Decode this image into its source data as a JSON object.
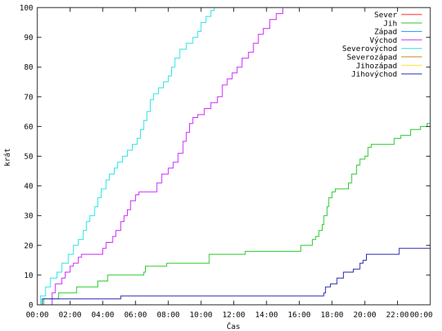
{
  "chart_data": {
    "type": "line",
    "xlabel": "Čas",
    "ylabel": "krát",
    "ylim": [
      0,
      100
    ],
    "xlim": [
      0,
      24
    ],
    "x_ticks": [
      {
        "value": 0,
        "label": "00:00"
      },
      {
        "value": 2,
        "label": "02:00"
      },
      {
        "value": 4,
        "label": "04:00"
      },
      {
        "value": 6,
        "label": "06:00"
      },
      {
        "value": 8,
        "label": "08:00"
      },
      {
        "value": 10,
        "label": "10:00"
      },
      {
        "value": 12,
        "label": "12:00"
      },
      {
        "value": 14,
        "label": "14:00"
      },
      {
        "value": 16,
        "label": "16:00"
      },
      {
        "value": 18,
        "label": "18:00"
      },
      {
        "value": 20,
        "label": "20:00"
      },
      {
        "value": 22,
        "label": "22:00"
      },
      {
        "value": 24,
        "label": "00:00"
      }
    ],
    "y_ticks": [
      0,
      10,
      20,
      30,
      40,
      50,
      60,
      70,
      80,
      90,
      100
    ],
    "grid": false,
    "legend_position": "top-right",
    "series": [
      {
        "name": "Sever",
        "color": "#ff0000",
        "points": []
      },
      {
        "name": "Jih",
        "color": "#00c000",
        "points": [
          [
            0.3,
            0
          ],
          [
            0.4,
            2
          ],
          [
            1.2,
            2
          ],
          [
            1.3,
            4
          ],
          [
            2.3,
            4
          ],
          [
            2.4,
            6
          ],
          [
            3.6,
            6
          ],
          [
            3.7,
            8
          ],
          [
            4.2,
            8
          ],
          [
            4.3,
            10
          ],
          [
            6.4,
            10
          ],
          [
            6.5,
            11
          ],
          [
            6.6,
            13
          ],
          [
            7.8,
            13
          ],
          [
            7.9,
            14
          ],
          [
            10.4,
            14
          ],
          [
            10.5,
            17
          ],
          [
            12.6,
            17
          ],
          [
            12.7,
            18
          ],
          [
            16.0,
            18
          ],
          [
            16.1,
            20
          ],
          [
            16.7,
            20
          ],
          [
            16.8,
            22
          ],
          [
            17.0,
            23
          ],
          [
            17.2,
            25
          ],
          [
            17.4,
            27
          ],
          [
            17.5,
            30
          ],
          [
            17.7,
            33
          ],
          [
            17.8,
            36
          ],
          [
            18.0,
            38
          ],
          [
            18.2,
            39
          ],
          [
            18.8,
            39
          ],
          [
            19.0,
            41
          ],
          [
            19.2,
            44
          ],
          [
            19.5,
            47
          ],
          [
            19.7,
            49
          ],
          [
            20.0,
            50
          ],
          [
            20.2,
            53
          ],
          [
            20.4,
            54
          ],
          [
            21.5,
            54
          ],
          [
            21.8,
            56
          ],
          [
            22.2,
            57
          ],
          [
            22.8,
            59
          ],
          [
            23.4,
            60
          ],
          [
            23.8,
            61
          ],
          [
            24.0,
            63
          ]
        ]
      },
      {
        "name": "Západ",
        "color": "#0080ff",
        "points": []
      },
      {
        "name": "Východ",
        "color": "#c000ff",
        "points": [
          [
            0.8,
            0
          ],
          [
            0.9,
            4
          ],
          [
            1.1,
            7
          ],
          [
            1.5,
            9
          ],
          [
            1.7,
            11
          ],
          [
            2.0,
            13
          ],
          [
            2.2,
            14
          ],
          [
            2.5,
            16
          ],
          [
            2.7,
            17
          ],
          [
            3.9,
            17
          ],
          [
            4.0,
            19
          ],
          [
            4.2,
            21
          ],
          [
            4.6,
            23
          ],
          [
            4.8,
            25
          ],
          [
            5.1,
            28
          ],
          [
            5.3,
            30
          ],
          [
            5.5,
            32
          ],
          [
            5.7,
            35
          ],
          [
            6.0,
            37
          ],
          [
            6.2,
            38
          ],
          [
            7.0,
            38
          ],
          [
            7.3,
            41
          ],
          [
            7.6,
            44
          ],
          [
            8.0,
            46
          ],
          [
            8.3,
            48
          ],
          [
            8.6,
            51
          ],
          [
            8.9,
            55
          ],
          [
            9.1,
            58
          ],
          [
            9.3,
            61
          ],
          [
            9.5,
            63
          ],
          [
            9.8,
            64
          ],
          [
            10.2,
            66
          ],
          [
            10.6,
            68
          ],
          [
            11.0,
            70
          ],
          [
            11.3,
            74
          ],
          [
            11.6,
            76
          ],
          [
            11.9,
            78
          ],
          [
            12.2,
            80
          ],
          [
            12.5,
            83
          ],
          [
            12.9,
            85
          ],
          [
            13.2,
            88
          ],
          [
            13.5,
            91
          ],
          [
            13.8,
            93
          ],
          [
            14.2,
            96
          ],
          [
            14.6,
            98
          ],
          [
            15.0,
            100
          ]
        ]
      },
      {
        "name": "Severovýchod",
        "color": "#00e0e0",
        "points": [
          [
            0.0,
            0
          ],
          [
            0.2,
            3
          ],
          [
            0.5,
            6
          ],
          [
            0.8,
            9
          ],
          [
            1.2,
            11
          ],
          [
            1.5,
            14
          ],
          [
            1.9,
            17
          ],
          [
            2.2,
            20
          ],
          [
            2.5,
            22
          ],
          [
            2.8,
            25
          ],
          [
            3.0,
            28
          ],
          [
            3.2,
            30
          ],
          [
            3.5,
            33
          ],
          [
            3.7,
            36
          ],
          [
            3.9,
            39
          ],
          [
            4.2,
            42
          ],
          [
            4.4,
            44
          ],
          [
            4.7,
            46
          ],
          [
            4.9,
            48
          ],
          [
            5.2,
            50
          ],
          [
            5.5,
            52
          ],
          [
            5.8,
            54
          ],
          [
            6.1,
            56
          ],
          [
            6.3,
            59
          ],
          [
            6.5,
            62
          ],
          [
            6.7,
            65
          ],
          [
            6.9,
            69
          ],
          [
            7.1,
            71
          ],
          [
            7.4,
            73
          ],
          [
            7.7,
            75
          ],
          [
            8.0,
            77
          ],
          [
            8.2,
            80
          ],
          [
            8.4,
            83
          ],
          [
            8.7,
            86
          ],
          [
            9.1,
            88
          ],
          [
            9.5,
            90
          ],
          [
            9.8,
            92
          ],
          [
            10.0,
            95
          ],
          [
            10.3,
            97
          ],
          [
            10.6,
            99
          ],
          [
            10.8,
            100
          ]
        ]
      },
      {
        "name": "Severozápad",
        "color": "#c08000",
        "points": []
      },
      {
        "name": "Jihozápad",
        "color": "#f0e000",
        "points": []
      },
      {
        "name": "Jihovýchod",
        "color": "#0000a0",
        "points": [
          [
            0.2,
            0
          ],
          [
            0.3,
            2
          ],
          [
            5.0,
            2
          ],
          [
            5.1,
            3
          ],
          [
            17.3,
            3
          ],
          [
            17.5,
            4
          ],
          [
            17.6,
            6
          ],
          [
            17.9,
            7
          ],
          [
            18.3,
            9
          ],
          [
            18.7,
            11
          ],
          [
            19.3,
            12
          ],
          [
            19.7,
            14
          ],
          [
            19.9,
            15
          ],
          [
            20.1,
            17
          ],
          [
            22.0,
            17
          ],
          [
            22.1,
            19
          ],
          [
            24.0,
            19
          ]
        ]
      }
    ]
  }
}
